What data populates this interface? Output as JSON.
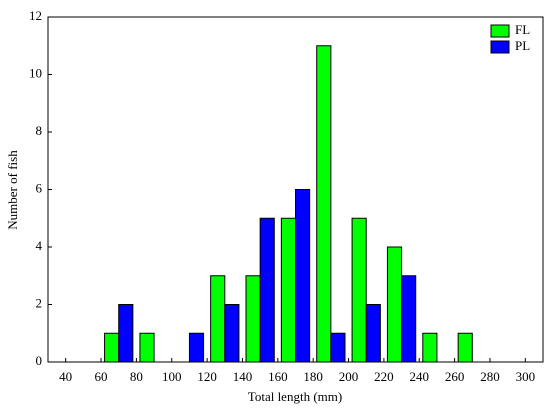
{
  "chart_data": {
    "type": "histogram",
    "xlabel": "Total length (mm)",
    "ylabel": "Number of fish",
    "bins": [
      40,
      60,
      80,
      100,
      120,
      140,
      160,
      180,
      200,
      220,
      240,
      260,
      280,
      300
    ],
    "series": [
      {
        "name": "FL",
        "color": "#00ff00",
        "values": [
          0,
          1,
          1,
          0,
          3,
          3,
          5,
          11,
          5,
          4,
          1,
          1,
          0
        ]
      },
      {
        "name": "PL",
        "color": "#0000ff",
        "values": [
          0,
          2,
          0,
          1,
          2,
          5,
          6,
          1,
          2,
          3,
          0,
          0,
          0
        ]
      }
    ],
    "xlim": [
      30,
      310
    ],
    "xticks": [
      40,
      60,
      80,
      100,
      120,
      140,
      160,
      180,
      200,
      220,
      240,
      260,
      280,
      300
    ],
    "ylim": [
      0,
      12
    ],
    "yticks": [
      0,
      2,
      4,
      6,
      8,
      10,
      12
    ],
    "legend": "top-right"
  }
}
